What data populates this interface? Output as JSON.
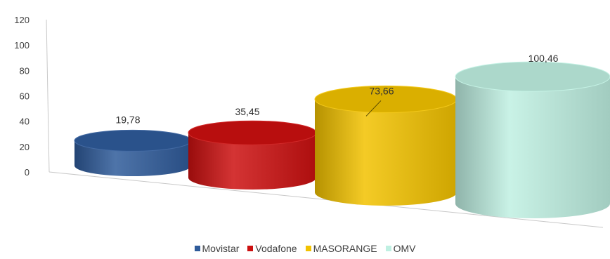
{
  "chart_data": {
    "type": "bar",
    "categories": [
      "Movistar",
      "Vodafone",
      "MASORANGE",
      "OMV"
    ],
    "values": [
      19.78,
      35.45,
      73.66,
      100.46
    ],
    "value_labels": [
      "19,78",
      "35,45",
      "73,66",
      "100,46"
    ],
    "colors": [
      "#2f5b9a",
      "#cc1010",
      "#f2c200",
      "#bff0e2"
    ],
    "y_ticks": [
      "0",
      "20",
      "40",
      "60",
      "80",
      "100",
      "120"
    ],
    "ylim": [
      0,
      120
    ],
    "legend_position": "bottom",
    "style": "3d-cylinder",
    "title": "",
    "xlabel": "",
    "ylabel": ""
  }
}
